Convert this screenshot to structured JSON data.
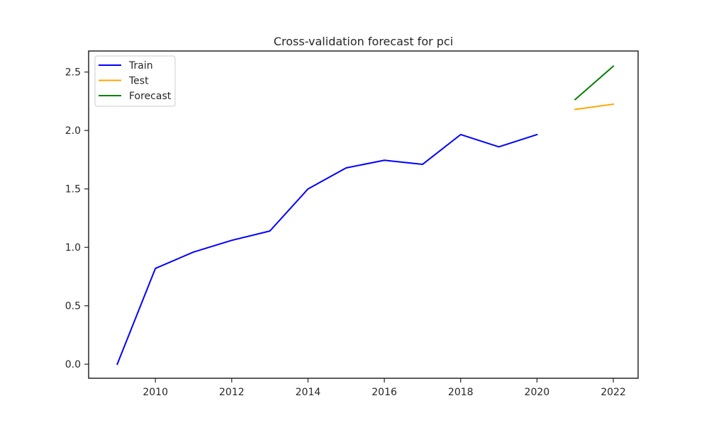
{
  "chart_data": {
    "type": "line",
    "title": "Cross-validation forecast for pci",
    "xlabel": "",
    "ylabel": "",
    "xlim": [
      2008.25,
      2022.65
    ],
    "ylim": [
      -0.12,
      2.68
    ],
    "xticks": [
      2010,
      2012,
      2014,
      2016,
      2018,
      2020,
      2022
    ],
    "yticks": [
      0.0,
      0.5,
      1.0,
      1.5,
      2.0,
      2.5
    ],
    "xtick_labels": [
      "2010",
      "2012",
      "2014",
      "2016",
      "2018",
      "2020",
      "2022"
    ],
    "ytick_labels": [
      "0.0",
      "0.5",
      "1.0",
      "1.5",
      "2.0",
      "2.5"
    ],
    "legend": {
      "placement": "top-left",
      "entries": [
        "Train",
        "Test",
        "Forecast"
      ]
    },
    "grid": false,
    "series": [
      {
        "name": "Train",
        "color": "#0000ff",
        "x": [
          2009,
          2010,
          2011,
          2012,
          2013,
          2014,
          2015,
          2016,
          2017,
          2018,
          2019,
          2020
        ],
        "values": [
          0.0,
          0.82,
          0.96,
          1.06,
          1.14,
          1.5,
          1.68,
          1.745,
          1.71,
          1.965,
          1.86,
          1.965
        ]
      },
      {
        "name": "Test",
        "color": "#ffa500",
        "x": [
          2021,
          2022
        ],
        "values": [
          2.18,
          2.225
        ]
      },
      {
        "name": "Forecast",
        "color": "#008000",
        "x": [
          2021,
          2022
        ],
        "values": [
          2.265,
          2.55
        ]
      }
    ]
  }
}
